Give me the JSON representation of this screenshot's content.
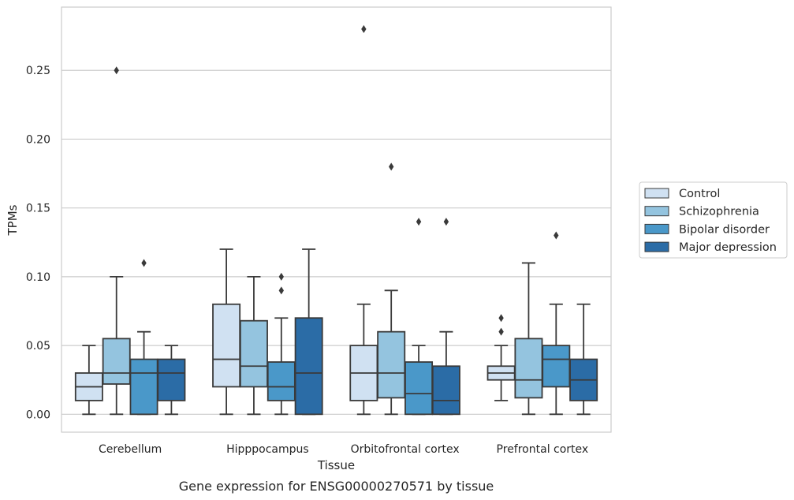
{
  "chart_data": {
    "type": "box",
    "caption": "Gene expression for ENSG00000270571 by tissue",
    "xlabel": "Tissue",
    "ylabel": "TPMs",
    "ylim": [
      -0.013,
      0.296
    ],
    "yticks": [
      0.0,
      0.05,
      0.1,
      0.15,
      0.2,
      0.25
    ],
    "ytick_labels": [
      "0.00",
      "0.05",
      "0.10",
      "0.15",
      "0.20",
      "0.25"
    ],
    "grid": true,
    "legend_position": "right",
    "categories": [
      "Cerebellum",
      "Hipppocampus",
      "Orbitofrontal cortex",
      "Prefrontal cortex"
    ],
    "series": [
      {
        "name": "Control",
        "color": "#d0e1f2",
        "boxes": [
          {
            "whisker_low": 0.0,
            "q1": 0.01,
            "median": 0.02,
            "q3": 0.03,
            "whisker_high": 0.05,
            "outliers": []
          },
          {
            "whisker_low": 0.0,
            "q1": 0.02,
            "median": 0.04,
            "q3": 0.08,
            "whisker_high": 0.12,
            "outliers": []
          },
          {
            "whisker_low": 0.0,
            "q1": 0.01,
            "median": 0.03,
            "q3": 0.05,
            "whisker_high": 0.08,
            "outliers": [
              0.28
            ]
          },
          {
            "whisker_low": 0.01,
            "q1": 0.025,
            "median": 0.03,
            "q3": 0.035,
            "whisker_high": 0.05,
            "outliers": [
              0.06,
              0.07
            ]
          }
        ]
      },
      {
        "name": "Schizophrenia",
        "color": "#94c4df",
        "boxes": [
          {
            "whisker_low": 0.0,
            "q1": 0.022,
            "median": 0.03,
            "q3": 0.055,
            "whisker_high": 0.1,
            "outliers": [
              0.25
            ]
          },
          {
            "whisker_low": 0.0,
            "q1": 0.02,
            "median": 0.035,
            "q3": 0.068,
            "whisker_high": 0.1,
            "outliers": []
          },
          {
            "whisker_low": 0.0,
            "q1": 0.012,
            "median": 0.03,
            "q3": 0.06,
            "whisker_high": 0.09,
            "outliers": [
              0.18
            ]
          },
          {
            "whisker_low": 0.0,
            "q1": 0.012,
            "median": 0.025,
            "q3": 0.055,
            "whisker_high": 0.11,
            "outliers": []
          }
        ]
      },
      {
        "name": "Bipolar disorder",
        "color": "#4a98c9",
        "boxes": [
          {
            "whisker_low": 0.0,
            "q1": 0.0,
            "median": 0.03,
            "q3": 0.04,
            "whisker_high": 0.06,
            "outliers": [
              0.11
            ]
          },
          {
            "whisker_low": 0.0,
            "q1": 0.01,
            "median": 0.02,
            "q3": 0.038,
            "whisker_high": 0.07,
            "outliers": [
              0.09,
              0.1
            ]
          },
          {
            "whisker_low": 0.0,
            "q1": 0.0,
            "median": 0.015,
            "q3": 0.038,
            "whisker_high": 0.05,
            "outliers": [
              0.14
            ]
          },
          {
            "whisker_low": 0.0,
            "q1": 0.02,
            "median": 0.04,
            "q3": 0.05,
            "whisker_high": 0.08,
            "outliers": [
              0.13
            ]
          }
        ]
      },
      {
        "name": "Major depression",
        "color": "#2b6ca6",
        "boxes": [
          {
            "whisker_low": 0.0,
            "q1": 0.01,
            "median": 0.03,
            "q3": 0.04,
            "whisker_high": 0.05,
            "outliers": []
          },
          {
            "whisker_low": 0.0,
            "q1": 0.0,
            "median": 0.03,
            "q3": 0.07,
            "whisker_high": 0.12,
            "outliers": []
          },
          {
            "whisker_low": 0.0,
            "q1": 0.0,
            "median": 0.01,
            "q3": 0.035,
            "whisker_high": 0.06,
            "outliers": [
              0.14
            ]
          },
          {
            "whisker_low": 0.0,
            "q1": 0.01,
            "median": 0.025,
            "q3": 0.04,
            "whisker_high": 0.08,
            "outliers": []
          }
        ]
      }
    ]
  }
}
